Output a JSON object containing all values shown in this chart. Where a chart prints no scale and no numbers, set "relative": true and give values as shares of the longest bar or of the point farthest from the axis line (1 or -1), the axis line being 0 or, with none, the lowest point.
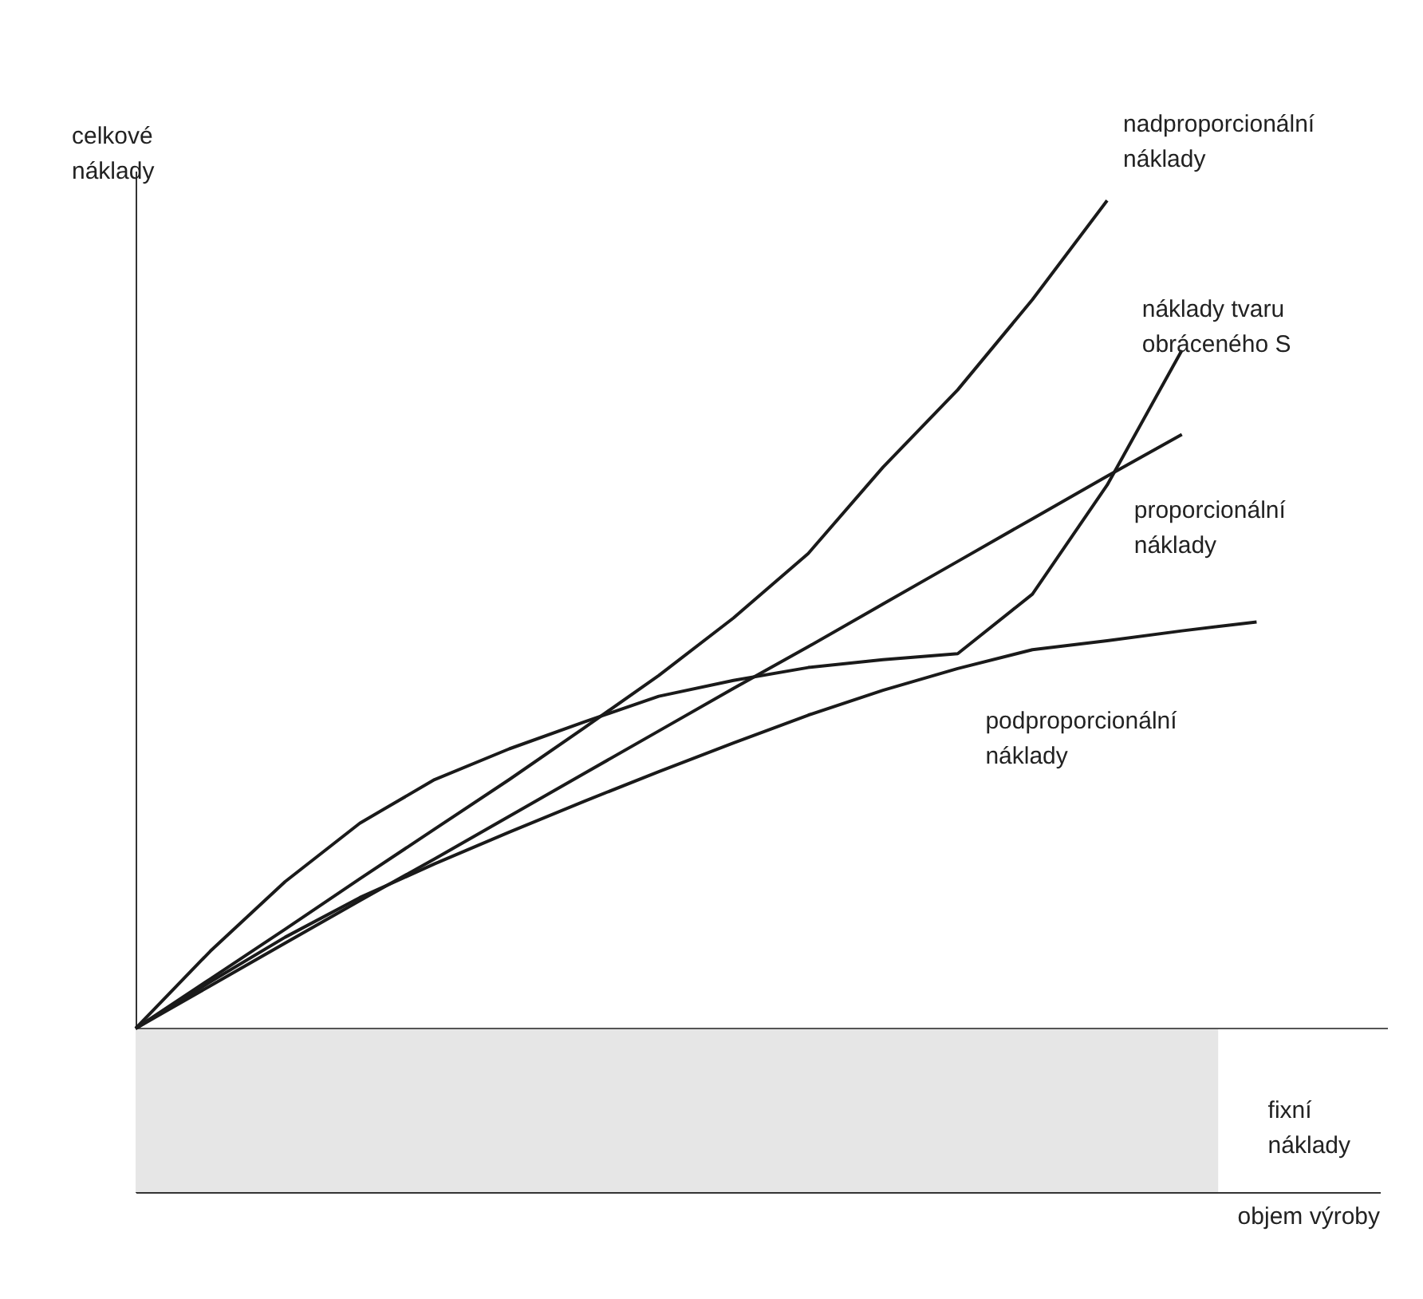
{
  "chart_data": {
    "type": "line",
    "relative": true,
    "xlabel": "objem výroby",
    "ylabel": "celkové\nnáklady",
    "categories": [
      null,
      null,
      null,
      null,
      null,
      null,
      null,
      null,
      null,
      null,
      null,
      null,
      null,
      null,
      null,
      null
    ],
    "marker": "none",
    "line_style": "solid",
    "series": [
      {
        "name": "nadproporcionální\nnáklady",
        "color": "#1a1a1a",
        "values": [
          0.165,
          0.215,
          0.265,
          0.316,
          0.366,
          0.416,
          0.468,
          0.521,
          0.579,
          0.644,
          0.731,
          0.809,
          0.9,
          1.0,
          null,
          null
        ]
      },
      {
        "name": "náklady tvaru\nobráceného S",
        "color": "#1a1a1a",
        "values": [
          0.165,
          0.243,
          0.313,
          0.372,
          0.416,
          0.447,
          0.474,
          0.5,
          0.516,
          0.529,
          0.537,
          0.543,
          0.603,
          0.713,
          0.849,
          null
        ]
      },
      {
        "name": "proporcionální\nnáklady",
        "color": "#1a1a1a",
        "values": [
          0.165,
          0.208,
          0.251,
          0.294,
          0.336,
          0.379,
          0.422,
          0.465,
          0.508,
          0.55,
          0.593,
          0.636,
          0.679,
          0.722,
          0.764,
          null
        ]
      },
      {
        "name": "podproporcionální\nnáklady",
        "color": "#1a1a1a",
        "values": [
          0.165,
          0.212,
          0.257,
          0.297,
          0.331,
          0.363,
          0.394,
          0.424,
          0.453,
          0.481,
          0.506,
          0.528,
          0.547,
          0.556,
          0.566,
          0.575
        ]
      }
    ],
    "bands": [
      {
        "axis": "y",
        "from": 0,
        "to": 0.165,
        "label": "fixní\nnáklady",
        "color": "#e6e6e6"
      }
    ],
    "ref_lines": [
      {
        "axis": "y",
        "value": 0.165,
        "color": "#555555"
      }
    ]
  }
}
